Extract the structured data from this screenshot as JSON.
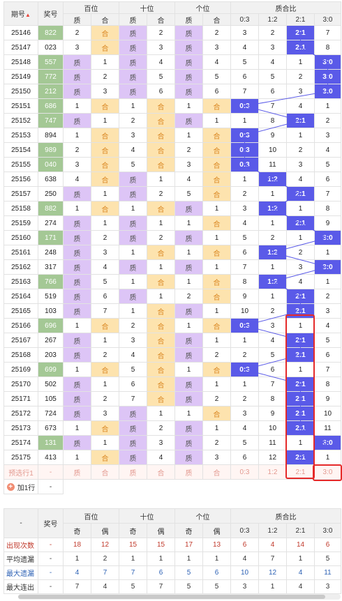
{
  "header": {
    "col_issue": "期号",
    "sort_glyph": "▲",
    "col_number": "奖号",
    "group_hundreds": "百位",
    "group_tens": "十位",
    "group_units": "个位",
    "group_ratio": "质合比",
    "sub_zhi": "质",
    "sub_he": "合",
    "ratio_cols": [
      "0:3",
      "1:2",
      "2:1",
      "3:0"
    ]
  },
  "rows": [
    {
      "issue": "25146",
      "num": "822",
      "hl": true,
      "h": "he",
      "h_miss": "2",
      "t": "zhi",
      "t_miss": "2",
      "u": "zhi",
      "u_miss": "2",
      "ratio": "2:1",
      "misses": [
        "3",
        "2",
        "",
        "7"
      ]
    },
    {
      "issue": "25147",
      "num": "023",
      "hl": false,
      "h": "he",
      "h_miss": "3",
      "t": "zhi",
      "t_miss": "3",
      "u": "zhi",
      "u_miss": "3",
      "ratio": "2:1",
      "misses": [
        "4",
        "3",
        "",
        "8"
      ]
    },
    {
      "issue": "25148",
      "num": "557",
      "hl": true,
      "h": "zhi",
      "h_miss": "1",
      "t": "zhi",
      "t_miss": "4",
      "u": "zhi",
      "u_miss": "4",
      "ratio": "3:0",
      "misses": [
        "5",
        "4",
        "1",
        ""
      ]
    },
    {
      "issue": "25149",
      "num": "772",
      "hl": true,
      "h": "zhi",
      "h_miss": "2",
      "t": "zhi",
      "t_miss": "5",
      "u": "zhi",
      "u_miss": "5",
      "ratio": "3:0",
      "misses": [
        "6",
        "5",
        "2",
        ""
      ]
    },
    {
      "issue": "25150",
      "num": "212",
      "hl": true,
      "h": "zhi",
      "h_miss": "3",
      "t": "zhi",
      "t_miss": "6",
      "u": "zhi",
      "u_miss": "6",
      "ratio": "3:0",
      "misses": [
        "7",
        "6",
        "3",
        ""
      ]
    },
    {
      "issue": "25151",
      "num": "686",
      "hl": true,
      "h": "he",
      "h_miss": "1",
      "t": "he",
      "t_miss": "1",
      "u": "he",
      "u_miss": "1",
      "ratio": "0:3",
      "misses": [
        "",
        "7",
        "4",
        "1"
      ]
    },
    {
      "issue": "25152",
      "num": "747",
      "hl": true,
      "h": "zhi",
      "h_miss": "1",
      "t": "he",
      "t_miss": "2",
      "u": "zhi",
      "u_miss": "1",
      "ratio": "2:1",
      "misses": [
        "1",
        "8",
        "",
        "2"
      ]
    },
    {
      "issue": "25153",
      "num": "894",
      "hl": false,
      "h": "he",
      "h_miss": "1",
      "t": "he",
      "t_miss": "3",
      "u": "he",
      "u_miss": "1",
      "ratio": "0:3",
      "misses": [
        "",
        "9",
        "1",
        "3"
      ]
    },
    {
      "issue": "25154",
      "num": "989",
      "hl": true,
      "h": "he",
      "h_miss": "2",
      "t": "he",
      "t_miss": "4",
      "u": "he",
      "u_miss": "2",
      "ratio": "0:3",
      "misses": [
        "",
        "10",
        "2",
        "4"
      ]
    },
    {
      "issue": "25155",
      "num": "040",
      "hl": true,
      "h": "he",
      "h_miss": "3",
      "t": "he",
      "t_miss": "5",
      "u": "he",
      "u_miss": "3",
      "ratio": "0:3",
      "misses": [
        "",
        "11",
        "3",
        "5"
      ]
    },
    {
      "issue": "25156",
      "num": "638",
      "hl": false,
      "h": "he",
      "h_miss": "4",
      "t": "zhi",
      "t_miss": "1",
      "u": "he",
      "u_miss": "4",
      "ratio": "1:2",
      "misses": [
        "1",
        "",
        "4",
        "6"
      ]
    },
    {
      "issue": "25157",
      "num": "250",
      "hl": false,
      "h": "zhi",
      "h_miss": "1",
      "t": "zhi",
      "t_miss": "2",
      "u": "he",
      "u_miss": "5",
      "ratio": "2:1",
      "misses": [
        "2",
        "1",
        "",
        "7"
      ]
    },
    {
      "issue": "25158",
      "num": "882",
      "hl": true,
      "h": "he",
      "h_miss": "1",
      "t": "he",
      "t_miss": "1",
      "u": "zhi",
      "u_miss": "1",
      "ratio": "1:2",
      "misses": [
        "3",
        "",
        "1",
        "8"
      ]
    },
    {
      "issue": "25159",
      "num": "274",
      "hl": false,
      "h": "zhi",
      "h_miss": "1",
      "t": "zhi",
      "t_miss": "1",
      "u": "he",
      "u_miss": "1",
      "ratio": "2:1",
      "misses": [
        "4",
        "1",
        "",
        "9"
      ]
    },
    {
      "issue": "25160",
      "num": "171",
      "hl": true,
      "h": "zhi",
      "h_miss": "2",
      "t": "zhi",
      "t_miss": "2",
      "u": "zhi",
      "u_miss": "1",
      "ratio": "3:0",
      "misses": [
        "5",
        "2",
        "1",
        ""
      ]
    },
    {
      "issue": "25161",
      "num": "248",
      "hl": false,
      "h": "zhi",
      "h_miss": "3",
      "t": "he",
      "t_miss": "1",
      "u": "he",
      "u_miss": "1",
      "ratio": "1:2",
      "misses": [
        "6",
        "",
        "2",
        "1"
      ]
    },
    {
      "issue": "25162",
      "num": "317",
      "hl": false,
      "h": "zhi",
      "h_miss": "4",
      "t": "zhi",
      "t_miss": "1",
      "u": "zhi",
      "u_miss": "1",
      "ratio": "3:0",
      "misses": [
        "7",
        "1",
        "3",
        ""
      ]
    },
    {
      "issue": "25163",
      "num": "766",
      "hl": true,
      "h": "zhi",
      "h_miss": "5",
      "t": "he",
      "t_miss": "1",
      "u": "he",
      "u_miss": "1",
      "ratio": "1:2",
      "misses": [
        "8",
        "",
        "4",
        "1"
      ]
    },
    {
      "issue": "25164",
      "num": "519",
      "h": "zhi",
      "hl": false,
      "h_miss": "6",
      "t": "zhi",
      "t_miss": "1",
      "u": "he",
      "u_miss": "2",
      "ratio": "2:1",
      "misses": [
        "9",
        "1",
        "",
        "2"
      ]
    },
    {
      "issue": "25165",
      "num": "103",
      "hl": false,
      "h": "zhi",
      "h_miss": "7",
      "t": "he",
      "t_miss": "1",
      "u": "zhi",
      "u_miss": "1",
      "ratio": "2:1",
      "misses": [
        "10",
        "2",
        "",
        "3"
      ]
    },
    {
      "issue": "25166",
      "num": "696",
      "hl": true,
      "h": "he",
      "h_miss": "1",
      "t": "he",
      "t_miss": "2",
      "u": "he",
      "u_miss": "1",
      "ratio": "0:3",
      "misses": [
        "",
        "3",
        "1",
        "4"
      ]
    },
    {
      "issue": "25167",
      "num": "267",
      "hl": false,
      "h": "zhi",
      "h_miss": "1",
      "t": "he",
      "t_miss": "3",
      "u": "zhi",
      "u_miss": "1",
      "ratio": "2:1",
      "misses": [
        "1",
        "4",
        "",
        "5"
      ]
    },
    {
      "issue": "25168",
      "num": "203",
      "hl": false,
      "h": "zhi",
      "h_miss": "2",
      "t": "he",
      "t_miss": "4",
      "u": "zhi",
      "u_miss": "2",
      "ratio": "2:1",
      "misses": [
        "2",
        "5",
        "",
        "6"
      ]
    },
    {
      "issue": "25169",
      "num": "699",
      "hl": true,
      "h": "he",
      "h_miss": "1",
      "t": "he",
      "t_miss": "5",
      "u": "he",
      "u_miss": "1",
      "ratio": "0:3",
      "misses": [
        "",
        "6",
        "1",
        "7"
      ]
    },
    {
      "issue": "25170",
      "num": "502",
      "hl": false,
      "h": "zhi",
      "h_miss": "1",
      "t": "he",
      "t_miss": "6",
      "u": "zhi",
      "u_miss": "1",
      "ratio": "2:1",
      "misses": [
        "1",
        "7",
        "",
        "8"
      ]
    },
    {
      "issue": "25171",
      "num": "105",
      "hl": false,
      "h": "zhi",
      "h_miss": "2",
      "t": "he",
      "t_miss": "7",
      "u": "zhi",
      "u_miss": "2",
      "ratio": "2:1",
      "misses": [
        "2",
        "8",
        "",
        "9"
      ]
    },
    {
      "issue": "25172",
      "num": "724",
      "hl": false,
      "h": "zhi",
      "h_miss": "3",
      "t": "zhi",
      "t_miss": "1",
      "u": "he",
      "u_miss": "1",
      "ratio": "2:1",
      "misses": [
        "3",
        "9",
        "",
        "10"
      ]
    },
    {
      "issue": "25173",
      "num": "673",
      "hl": false,
      "h": "he",
      "h_miss": "1",
      "t": "zhi",
      "t_miss": "2",
      "u": "zhi",
      "u_miss": "1",
      "ratio": "2:1",
      "misses": [
        "4",
        "10",
        "",
        "11"
      ]
    },
    {
      "issue": "25174",
      "num": "131",
      "hl": true,
      "h": "zhi",
      "h_miss": "1",
      "t": "zhi",
      "t_miss": "3",
      "u": "zhi",
      "u_miss": "2",
      "ratio": "3:0",
      "misses": [
        "5",
        "11",
        "1",
        ""
      ]
    },
    {
      "issue": "25175",
      "num": "413",
      "hl": false,
      "h": "he",
      "h_miss": "1",
      "t": "zhi",
      "t_miss": "4",
      "u": "zhi",
      "u_miss": "3",
      "ratio": "2:1",
      "misses": [
        "6",
        "12",
        "",
        "1"
      ]
    }
  ],
  "predict_row": {
    "label": "预选行1",
    "num": "-",
    "cells": [
      "质",
      "合",
      "质",
      "合",
      "质",
      "合"
    ],
    "ratios": [
      "0:3",
      "1:2",
      "2:1",
      "3:0"
    ]
  },
  "add_row": {
    "plus_glyph": "+",
    "label": "加1行",
    "num": "-"
  },
  "stats": {
    "col_blank": "-",
    "col_number": "奖号",
    "group_hundreds": "百位",
    "group_tens": "十位",
    "group_units": "个位",
    "group_ratio": "质合比",
    "sub_odd": "奇",
    "sub_even": "偶",
    "ratio_cols": [
      "0:3",
      "1:2",
      "2:1",
      "3:0"
    ],
    "rows": [
      {
        "label": "出现次数",
        "num": "-",
        "values": [
          "18",
          "12",
          "15",
          "15",
          "17",
          "13",
          "6",
          "4",
          "14",
          "6"
        ]
      },
      {
        "label": "平均遗漏",
        "num": "-",
        "values": [
          "1",
          "2",
          "1",
          "1",
          "1",
          "1",
          "4",
          "7",
          "1",
          "5"
        ]
      },
      {
        "label": "最大遗漏",
        "num": "-",
        "values": [
          "4",
          "7",
          "7",
          "6",
          "5",
          "6",
          "10",
          "12",
          "4",
          "11"
        ]
      },
      {
        "label": "最大连出",
        "num": "-",
        "values": [
          "7",
          "4",
          "5",
          "7",
          "5",
          "5",
          "3",
          "1",
          "4",
          "3"
        ]
      }
    ]
  },
  "colors": {
    "number_highlight": "#a4c895",
    "zhi_fill": "#ddc5f6",
    "he_fill": "#fde3ae",
    "he_text": "#d9841e",
    "ratio_hit": "#5a5ae8",
    "trend_line": "#5a5ae8",
    "highlight_box": "#e52a2a",
    "stat_row_1": "#c0392b",
    "stat_row_3": "#2e62b5"
  }
}
